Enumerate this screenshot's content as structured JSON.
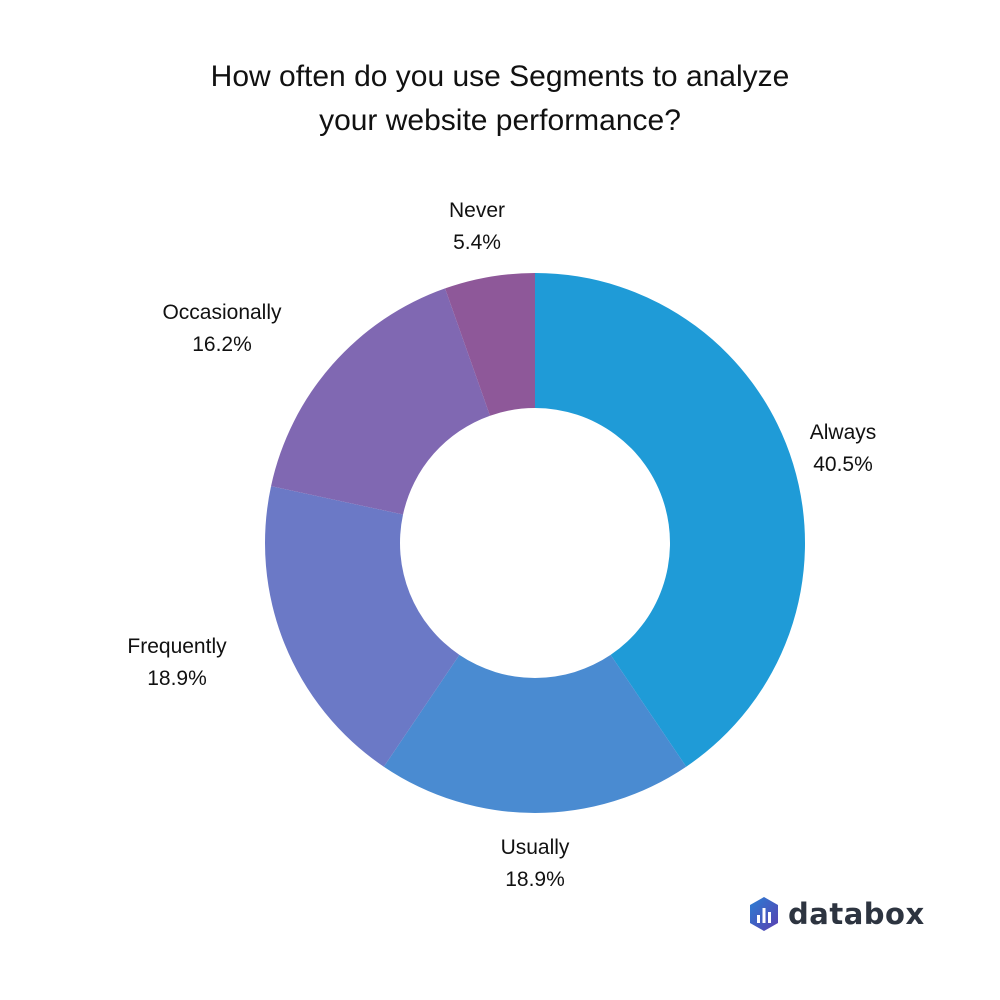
{
  "title": {
    "line1": "How often do you use Segments to analyze",
    "line2": "your website performance?"
  },
  "chart_data": {
    "type": "pie",
    "variant": "donut",
    "title": "How often do you use Segments to analyze your website performance?",
    "categories": [
      "Always",
      "Usually",
      "Frequently",
      "Occasionally",
      "Never"
    ],
    "values": [
      40.5,
      18.9,
      18.9,
      16.2,
      5.4
    ],
    "value_labels": [
      "40.5%",
      "18.9%",
      "18.9%",
      "16.2%",
      "5.4%"
    ],
    "colors": [
      "#1f9bd7",
      "#4a8bd1",
      "#6b79c6",
      "#8068b2",
      "#8e5899"
    ],
    "start_angle": "12 o'clock, clockwise",
    "legend": "none (direct labels)"
  },
  "labels": [
    {
      "name": "Always",
      "pct": "40.5%"
    },
    {
      "name": "Usually",
      "pct": "18.9%"
    },
    {
      "name": "Frequently",
      "pct": "18.9%"
    },
    {
      "name": "Occasionally",
      "pct": "16.2%"
    },
    {
      "name": "Never",
      "pct": "5.4%"
    }
  ],
  "brand": {
    "name": "databox"
  }
}
